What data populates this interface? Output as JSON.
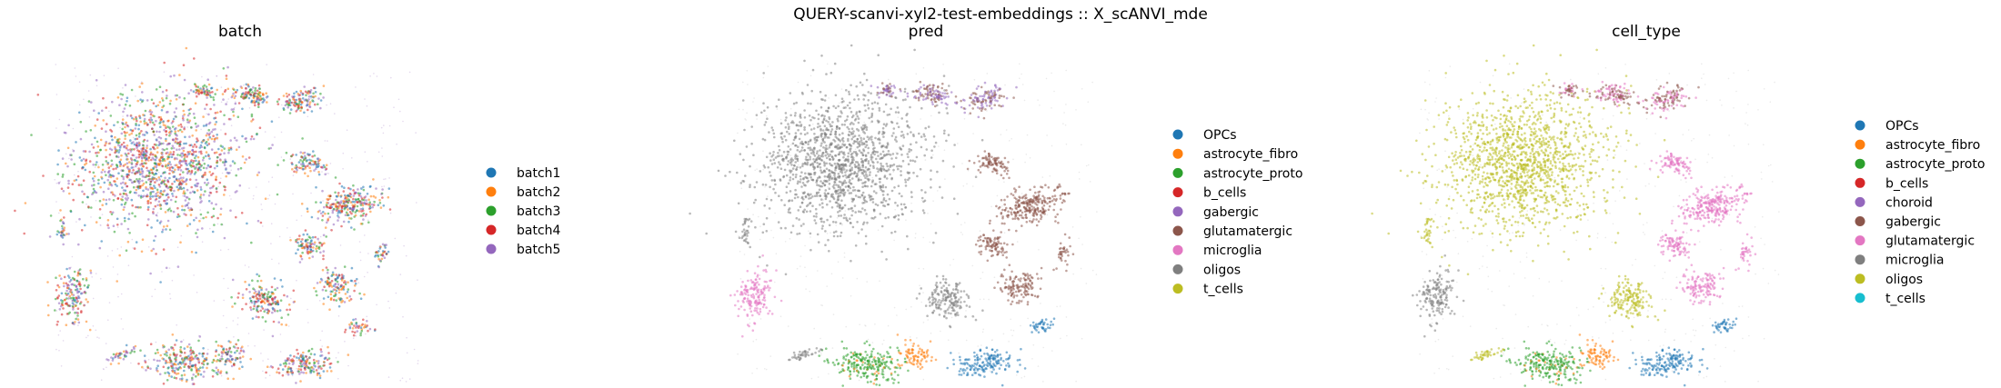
{
  "figure": {
    "suptitle": "QUERY-scanvi-xyl2-test-embeddings :: X_scANVI_mde"
  },
  "chart_data": [
    {
      "type": "scatter",
      "title": "batch",
      "legend_placement": "right",
      "legend": [
        {
          "label": "batch1",
          "color": "#1f77b4"
        },
        {
          "label": "batch2",
          "color": "#ff7f0e"
        },
        {
          "label": "batch3",
          "color": "#2ca02c"
        },
        {
          "label": "batch4",
          "color": "#d62728"
        },
        {
          "label": "batch5",
          "color": "#9467bd"
        }
      ]
    },
    {
      "type": "scatter",
      "title": "pred",
      "legend_placement": "right",
      "legend": [
        {
          "label": "OPCs",
          "color": "#1f77b4"
        },
        {
          "label": "astrocyte_fibro",
          "color": "#ff7f0e"
        },
        {
          "label": "astrocyte_proto",
          "color": "#2ca02c"
        },
        {
          "label": "b_cells",
          "color": "#d62728"
        },
        {
          "label": "gabergic",
          "color": "#9467bd"
        },
        {
          "label": "glutamatergic",
          "color": "#8c564b"
        },
        {
          "label": "microglia",
          "color": "#e377c2"
        },
        {
          "label": "oligos",
          "color": "#7f7f7f"
        },
        {
          "label": "t_cells",
          "color": "#bcbd22"
        }
      ]
    },
    {
      "type": "scatter",
      "title": "cell_type",
      "legend_placement": "right",
      "legend": [
        {
          "label": "OPCs",
          "color": "#1f77b4"
        },
        {
          "label": "astrocyte_fibro",
          "color": "#ff7f0e"
        },
        {
          "label": "astrocyte_proto",
          "color": "#2ca02c"
        },
        {
          "label": "b_cells",
          "color": "#d62728"
        },
        {
          "label": "choroid",
          "color": "#9467bd"
        },
        {
          "label": "gabergic",
          "color": "#8c564b"
        },
        {
          "label": "glutamatergic",
          "color": "#e377c2"
        },
        {
          "label": "microglia",
          "color": "#7f7f7f"
        },
        {
          "label": "oligos",
          "color": "#bcbd22"
        },
        {
          "label": "t_cells",
          "color": "#17becf"
        }
      ]
    }
  ]
}
